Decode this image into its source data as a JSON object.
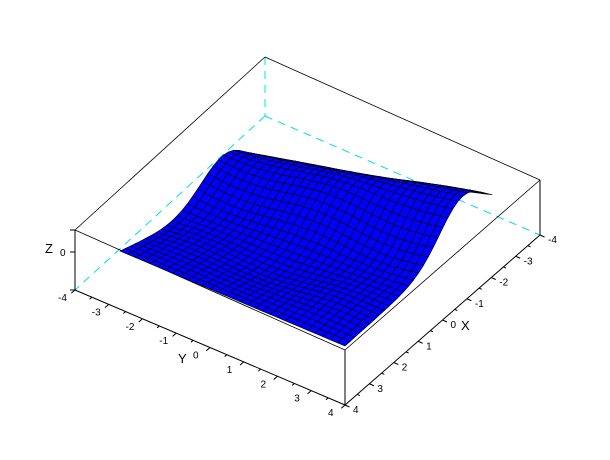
{
  "chart_data": {
    "type": "surface",
    "title": "",
    "xlabel": "X",
    "ylabel": "Y",
    "zlabel": "Z",
    "xlim": [
      -4,
      4
    ],
    "ylim": [
      -4,
      4
    ],
    "x_ticks": [
      "-4",
      "-3",
      "-2",
      "-1",
      "0",
      "1",
      "2",
      "3",
      "4"
    ],
    "y_ticks": [
      "-4",
      "-3",
      "-2",
      "-1",
      "0",
      "1",
      "2",
      "3",
      "4"
    ],
    "z_ticks": [
      "0"
    ],
    "surface_color": "#0000ff",
    "mesh_color": "#000000",
    "hidden_edge_color": "#00e5e5",
    "grid_cells": [
      30,
      30
    ]
  }
}
